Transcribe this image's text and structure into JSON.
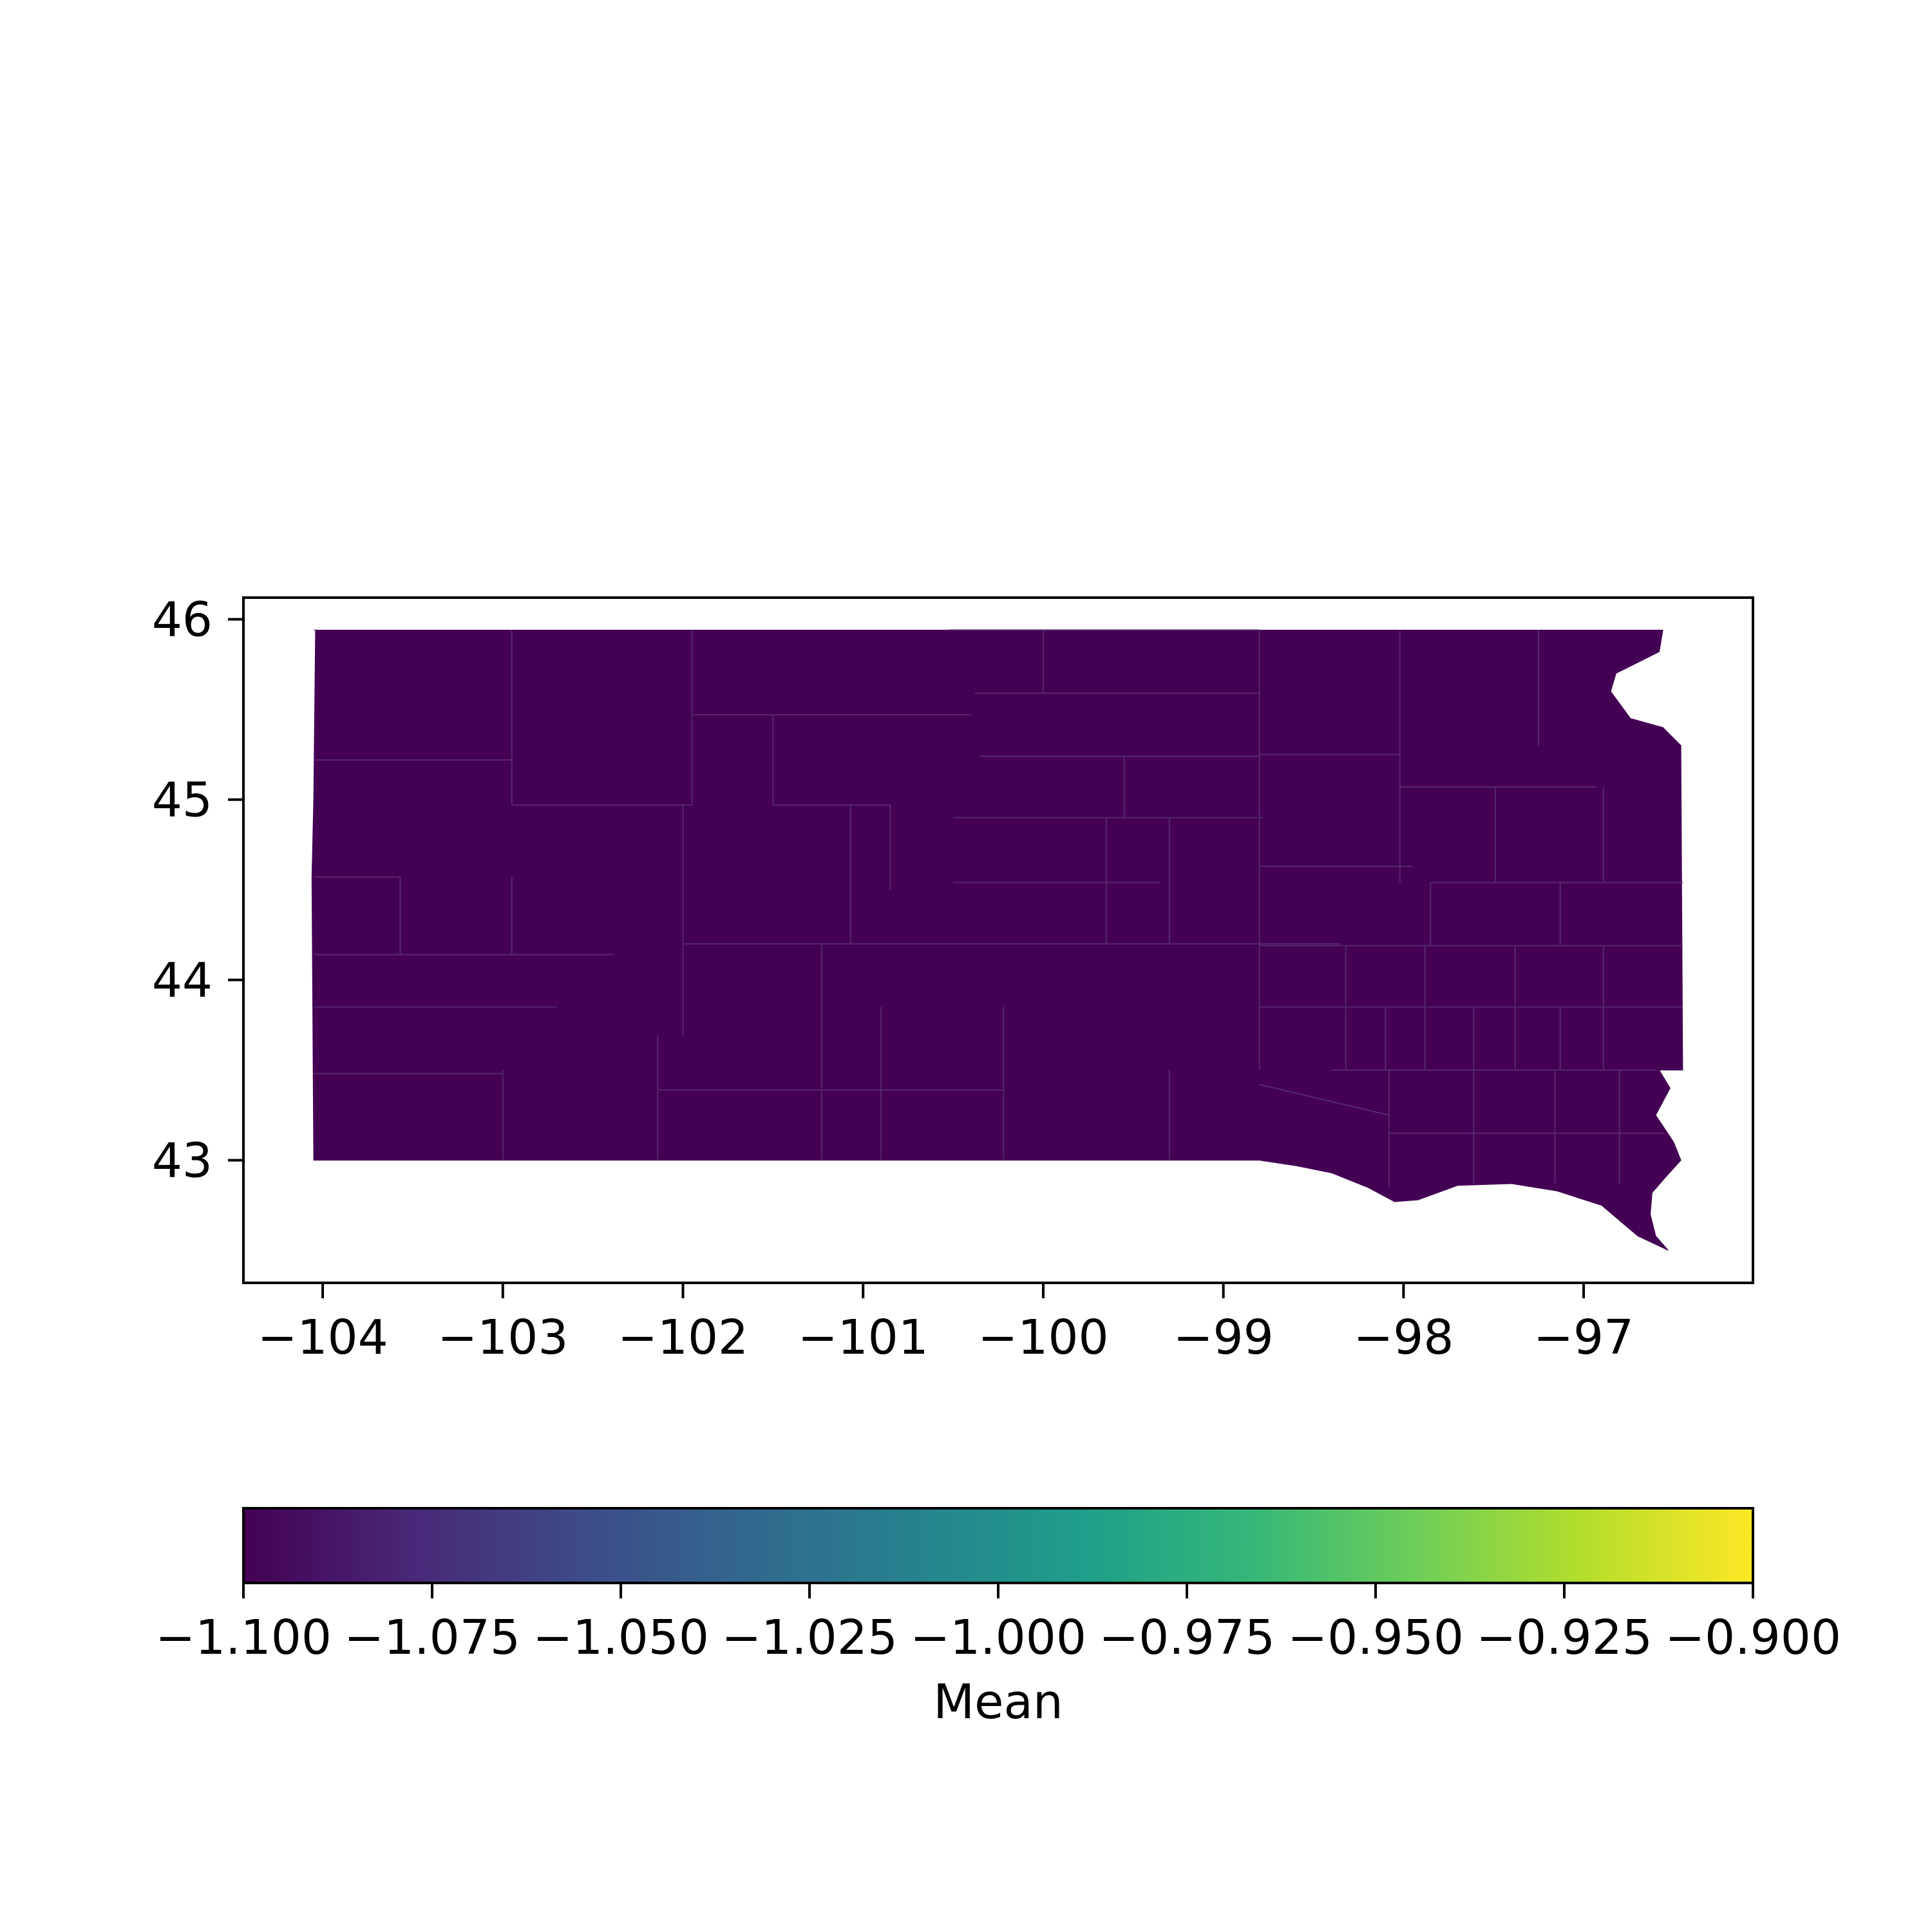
{
  "map": {
    "region": "South Dakota counties",
    "fill_color": "#440154",
    "border_color": "#3d1a5e",
    "x_ticks": [
      -104,
      -103,
      -102,
      -101,
      -100,
      -99,
      -98,
      -97
    ],
    "y_ticks": [
      43,
      44,
      45,
      46
    ],
    "x_tick_labels": [
      "−104",
      "−103",
      "−102",
      "−101",
      "−100",
      "−99",
      "−98",
      "−97"
    ],
    "y_tick_labels": [
      "43",
      "44",
      "45",
      "46"
    ],
    "xlim": [
      -104.44,
      -96.06
    ],
    "ylim": [
      42.32,
      46.12
    ]
  },
  "colorbar": {
    "label": "Mean",
    "colormap": "viridis",
    "range": [
      -1.1,
      -0.9
    ],
    "ticks": [
      -1.1,
      -1.075,
      -1.05,
      -1.025,
      -1.0,
      -0.975,
      -0.95,
      -0.925,
      -0.9
    ],
    "tick_labels": [
      "−1.100",
      "−1.075",
      "−1.050",
      "−1.025",
      "−1.000",
      "−0.975",
      "−0.950",
      "−0.925",
      "−0.900"
    ],
    "colors": [
      "#440154",
      "#482878",
      "#3e4a89",
      "#31688e",
      "#26828e",
      "#1f9e89",
      "#35b779",
      "#6ece58",
      "#b5de2b",
      "#fde725"
    ]
  }
}
